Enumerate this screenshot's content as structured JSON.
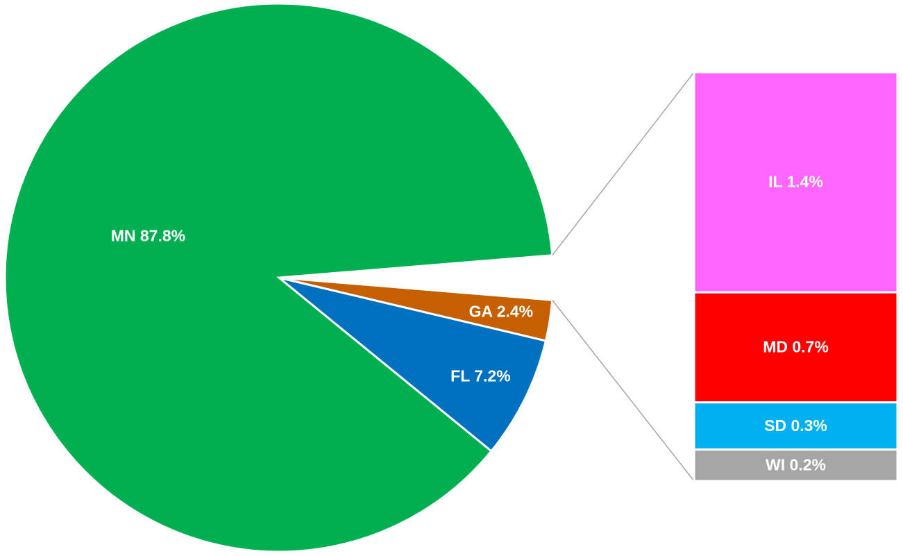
{
  "chart_data": {
    "type": "pie",
    "values": [
      87.8,
      7.2,
      2.4
    ],
    "value_labels": [
      "MN 87.8%",
      "FL 7.2%",
      "GA 2.4%"
    ],
    "colors": [
      "#00b050",
      "#0070c0",
      "#c65f00"
    ],
    "bar": {
      "values": [
        1.4,
        0.7,
        0.3,
        0.2
      ],
      "value_labels": [
        "IL 1.4%",
        "MD 0.7%",
        "SD 0.3%",
        "WI 0.2%"
      ],
      "colors": [
        "#ff66ff",
        "#ff0000",
        "#00b0f0",
        "#a6a6a6"
      ]
    }
  }
}
